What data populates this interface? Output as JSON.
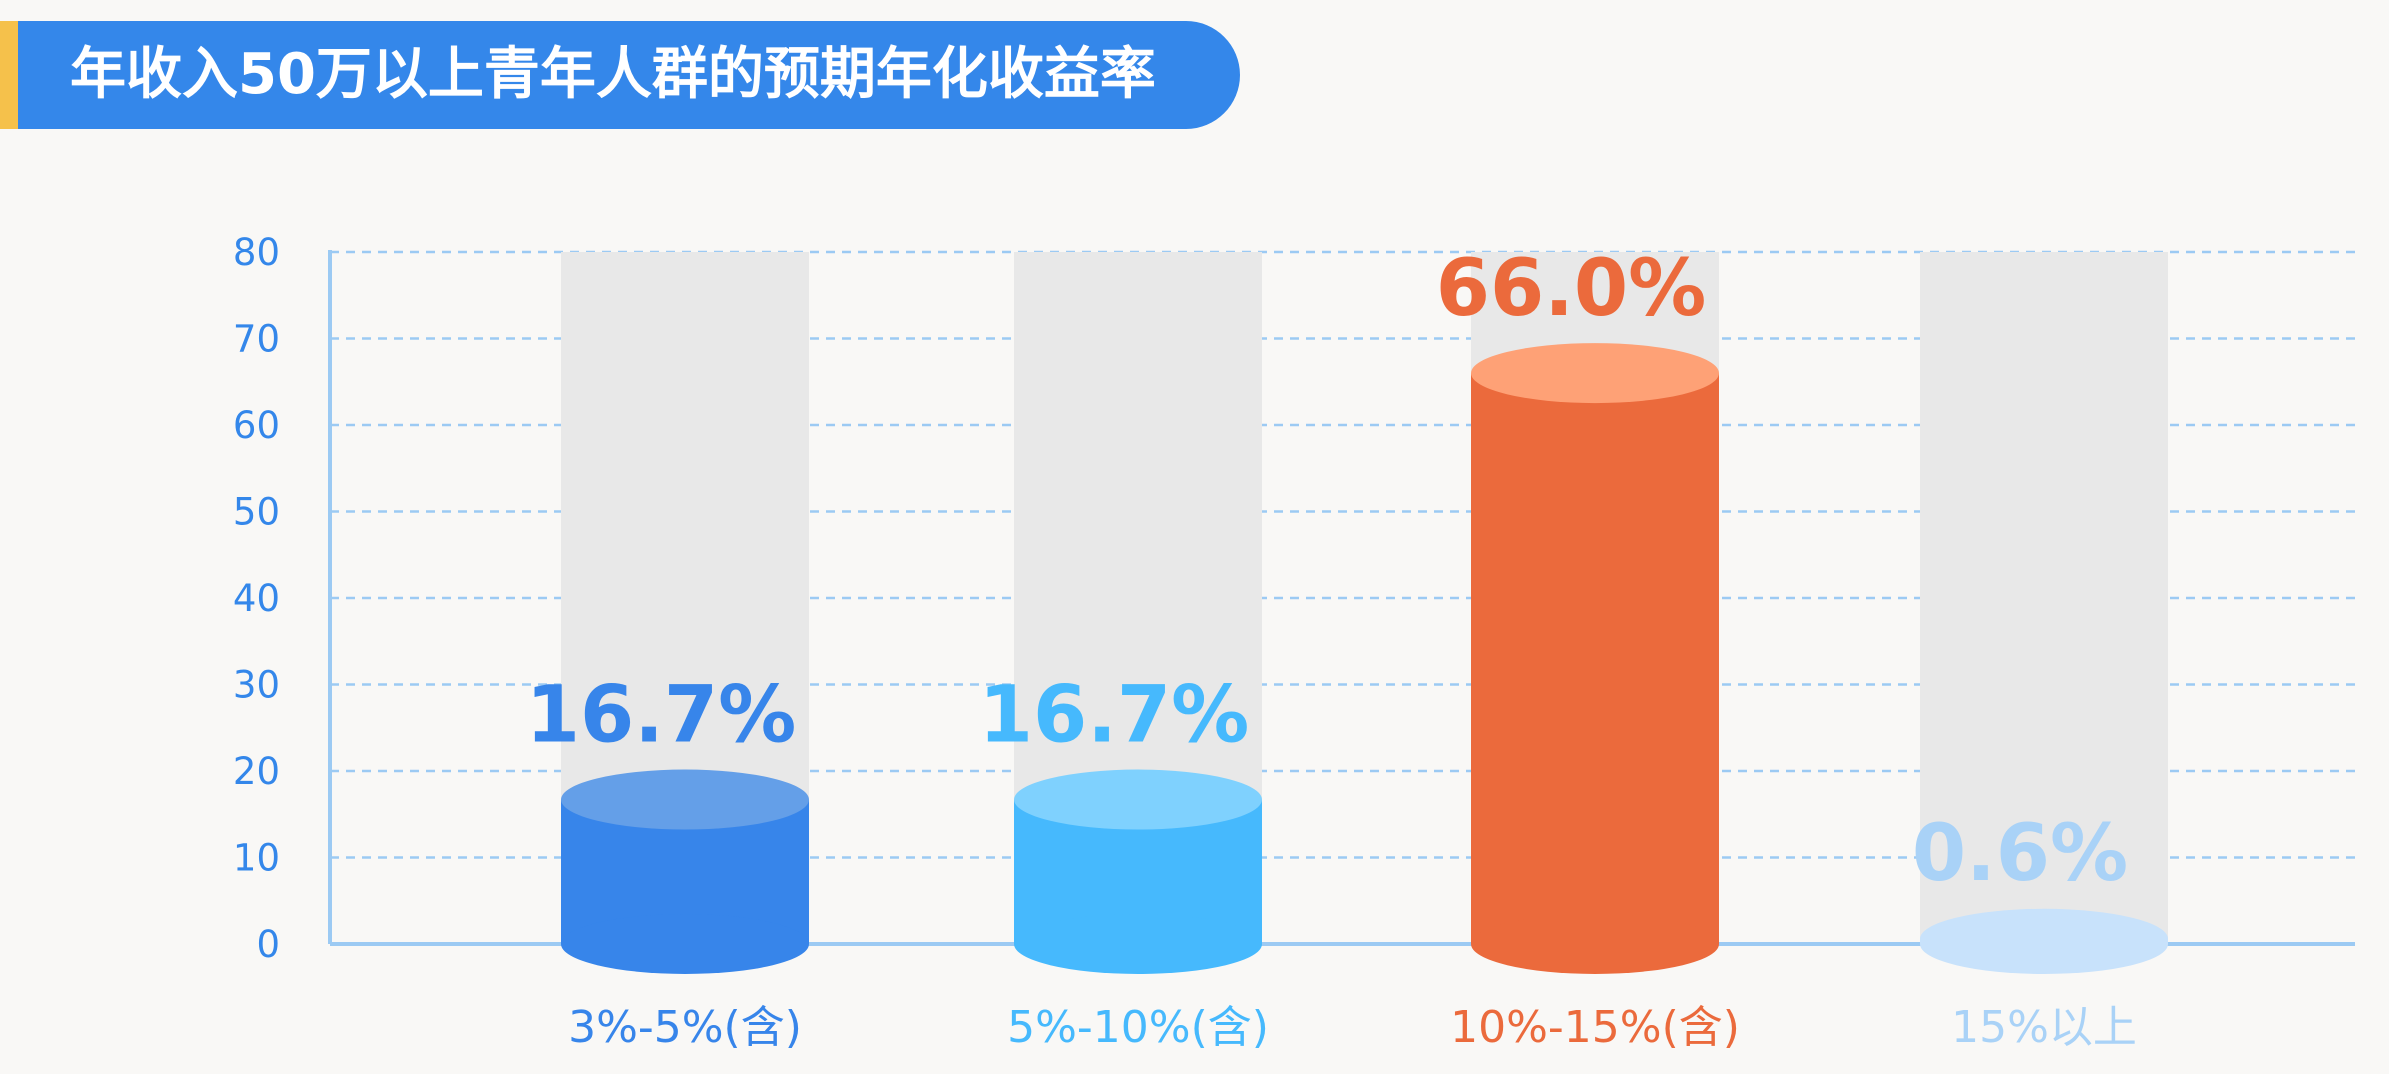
{
  "header": {
    "title": "年收入50万以上青年人群的预期年化收益率"
  },
  "colors": {
    "title_bg": "#3487ea",
    "title_accent": "#f5c14b",
    "axis": "#9ccaf3",
    "axis_text": "#3487ea",
    "track": "#e8e8e8"
  },
  "chart_data": {
    "type": "bar",
    "title": "年收入50万以上青年人群的预期年化收益率",
    "xlabel": "",
    "ylabel": "",
    "ylim": [
      0,
      80
    ],
    "yticks": [
      0,
      10,
      20,
      30,
      40,
      50,
      60,
      70,
      80
    ],
    "grid": true,
    "categories": [
      "3%-5%(含)",
      "5%-10%(含)",
      "10%-15%(含)",
      "15%以上"
    ],
    "values": [
      16.7,
      16.7,
      66.0,
      0.6
    ],
    "value_labels": [
      "16.7%",
      "16.7%",
      "66.0%",
      "0.6%"
    ],
    "bar_colors": [
      "#3785ea",
      "#46b9fd",
      "#eb6a3c",
      "#c8e2fb"
    ],
    "bar_top_colors": [
      "#649fe8",
      "#7fd1fe",
      "#fea176",
      "#c8e2fb"
    ],
    "label_colors": [
      "#3785ea",
      "#46b9fd",
      "#eb6a3c",
      "#a9d2f7"
    ]
  }
}
